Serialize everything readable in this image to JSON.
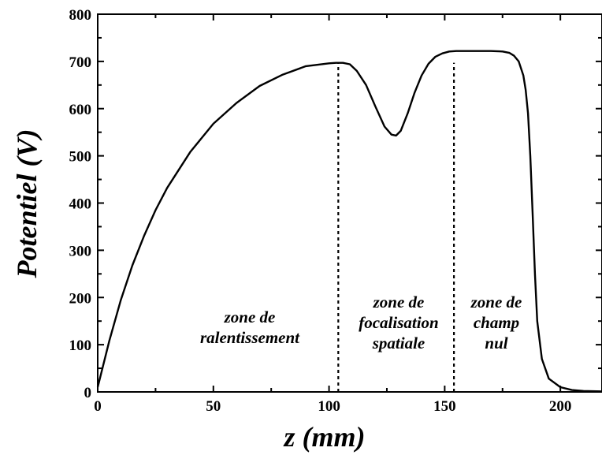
{
  "chart_data": {
    "type": "line",
    "xlabel": "z (mm)",
    "ylabel": "Potentiel (V)",
    "xlim": [
      0,
      218
    ],
    "ylim": [
      0,
      800
    ],
    "x_ticks": [
      0,
      50,
      100,
      150,
      200
    ],
    "y_ticks": [
      0,
      100,
      200,
      300,
      400,
      500,
      600,
      700,
      800
    ],
    "grid": false,
    "series": [
      {
        "x": [
          0,
          5,
          10,
          15,
          20,
          25,
          30,
          40,
          50,
          60,
          70,
          80,
          90,
          100,
          103,
          106,
          109,
          112,
          116,
          120,
          124,
          127,
          129,
          131,
          134,
          137,
          140,
          143,
          146,
          149,
          152,
          155,
          160,
          165,
          170,
          175,
          178,
          180,
          182,
          184,
          185,
          186,
          187,
          188,
          189,
          190,
          192,
          195,
          200,
          205,
          210,
          218
        ],
        "y": [
          10,
          108,
          195,
          268,
          330,
          385,
          432,
          508,
          568,
          612,
          648,
          672,
          690,
          696,
          697,
          697,
          694,
          680,
          650,
          605,
          562,
          545,
          543,
          553,
          590,
          634,
          670,
          695,
          710,
          717,
          721,
          722,
          722,
          722,
          722,
          721,
          718,
          712,
          700,
          670,
          640,
          590,
          500,
          380,
          250,
          150,
          70,
          28,
          10,
          4,
          2,
          1
        ]
      }
    ],
    "vlines": [
      104,
      154
    ],
    "annotations": [
      {
        "lines": [
          "zone de",
          "ralentissement"
        ]
      },
      {
        "lines": [
          "zone de",
          "focalisation",
          "spatiale"
        ]
      },
      {
        "lines": [
          "zone de",
          "champ",
          "nul"
        ]
      }
    ]
  }
}
